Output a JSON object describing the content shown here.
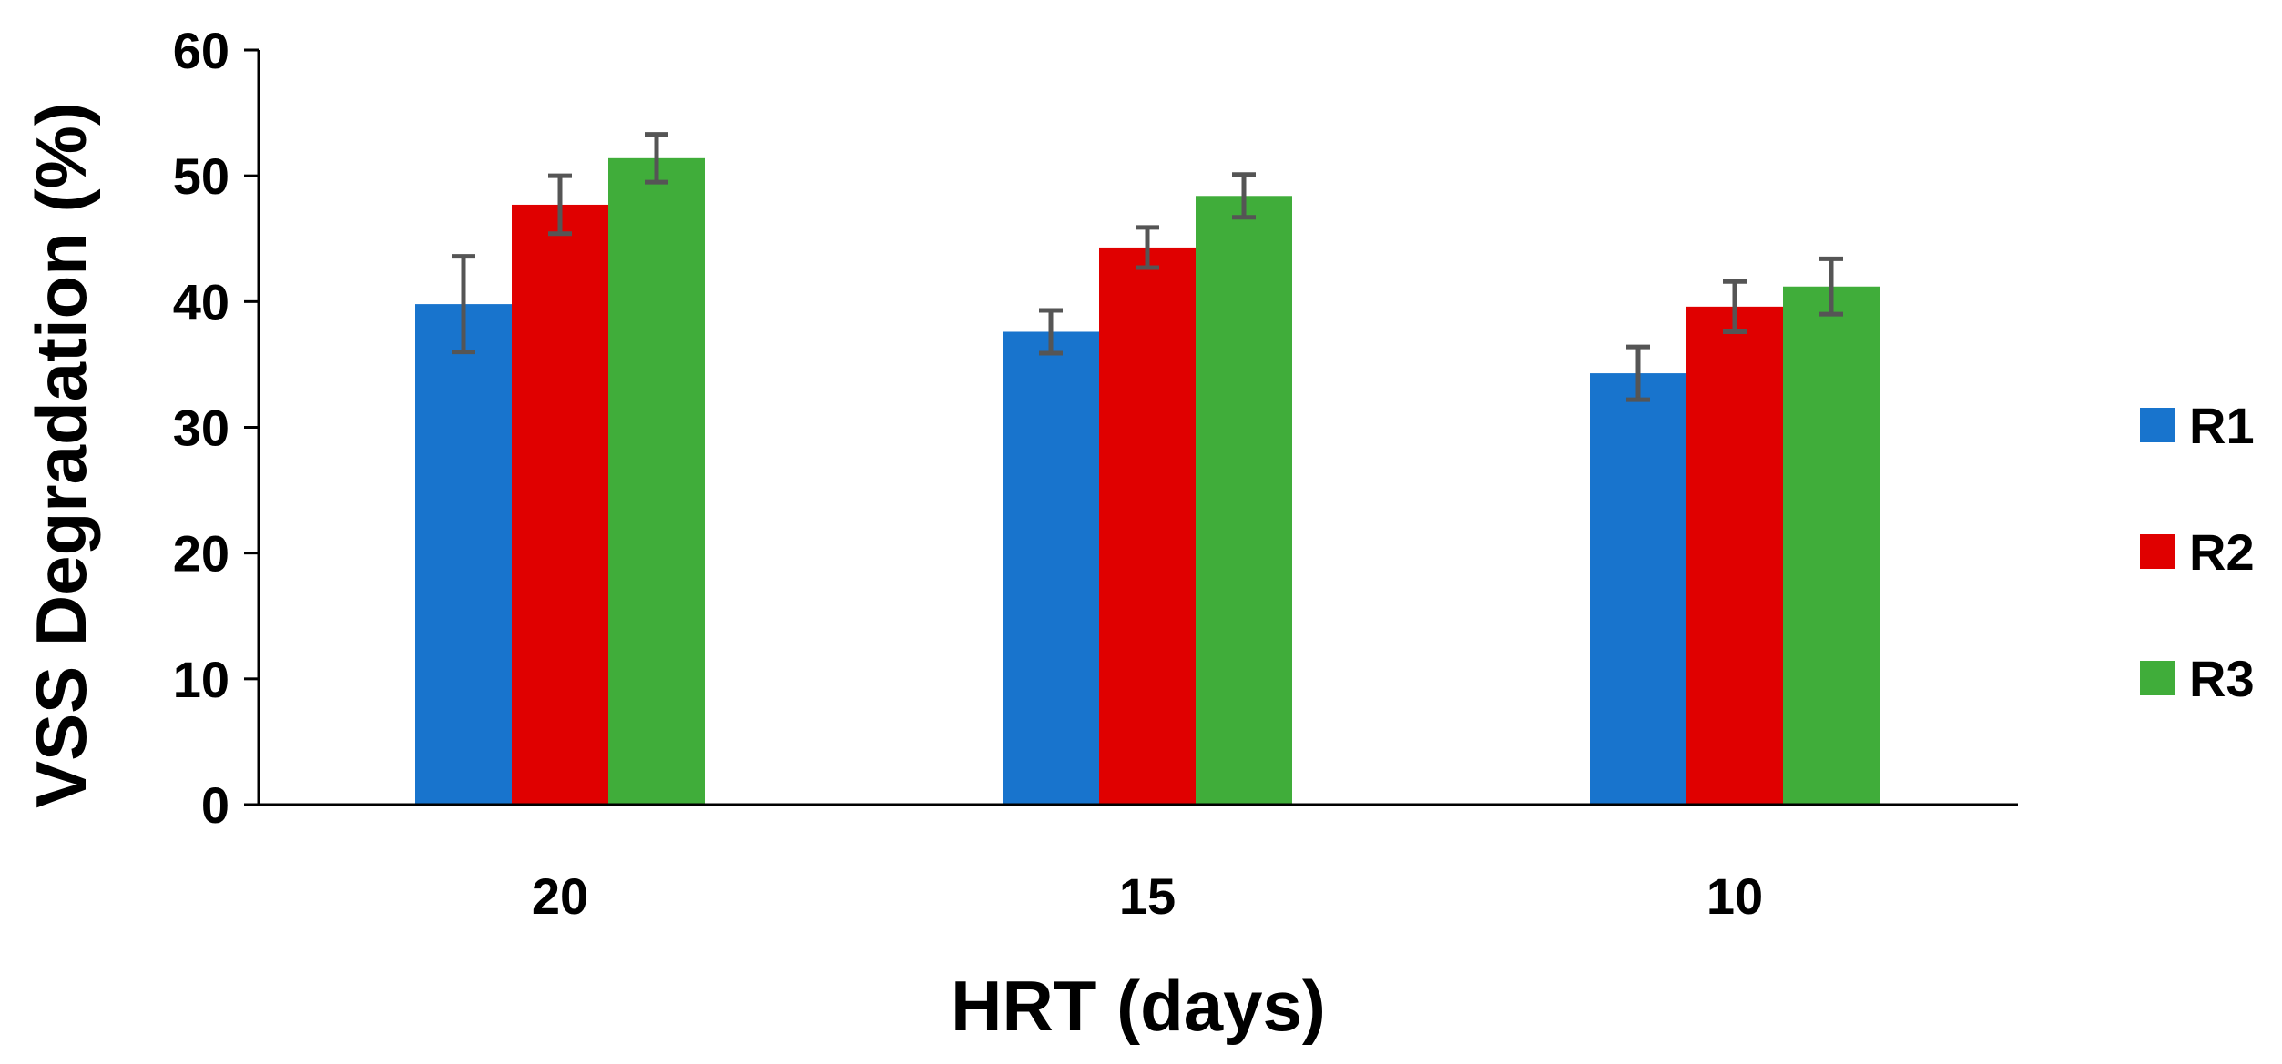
{
  "chart_data": {
    "type": "bar",
    "title": "",
    "xlabel": "HRT (days)",
    "ylabel": "VSS Degradation (%)",
    "categories": [
      "20",
      "15",
      "10"
    ],
    "ylim": [
      0,
      60
    ],
    "yticks": [
      0,
      10,
      20,
      30,
      40,
      50,
      60
    ],
    "grid": false,
    "legend_position": "right",
    "series": [
      {
        "name": "R1",
        "color": "#1874CD",
        "values": [
          39.8,
          37.6,
          34.3
        ],
        "errors": [
          3.8,
          1.7,
          2.1
        ]
      },
      {
        "name": "R2",
        "color": "#E00000",
        "values": [
          47.7,
          44.3,
          39.6
        ],
        "errors": [
          2.3,
          1.6,
          2.0
        ]
      },
      {
        "name": "R3",
        "color": "#40AD3A",
        "values": [
          51.4,
          48.4,
          41.2
        ],
        "errors": [
          1.9,
          1.7,
          2.2
        ]
      }
    ],
    "error_bar_color": "#555555"
  }
}
